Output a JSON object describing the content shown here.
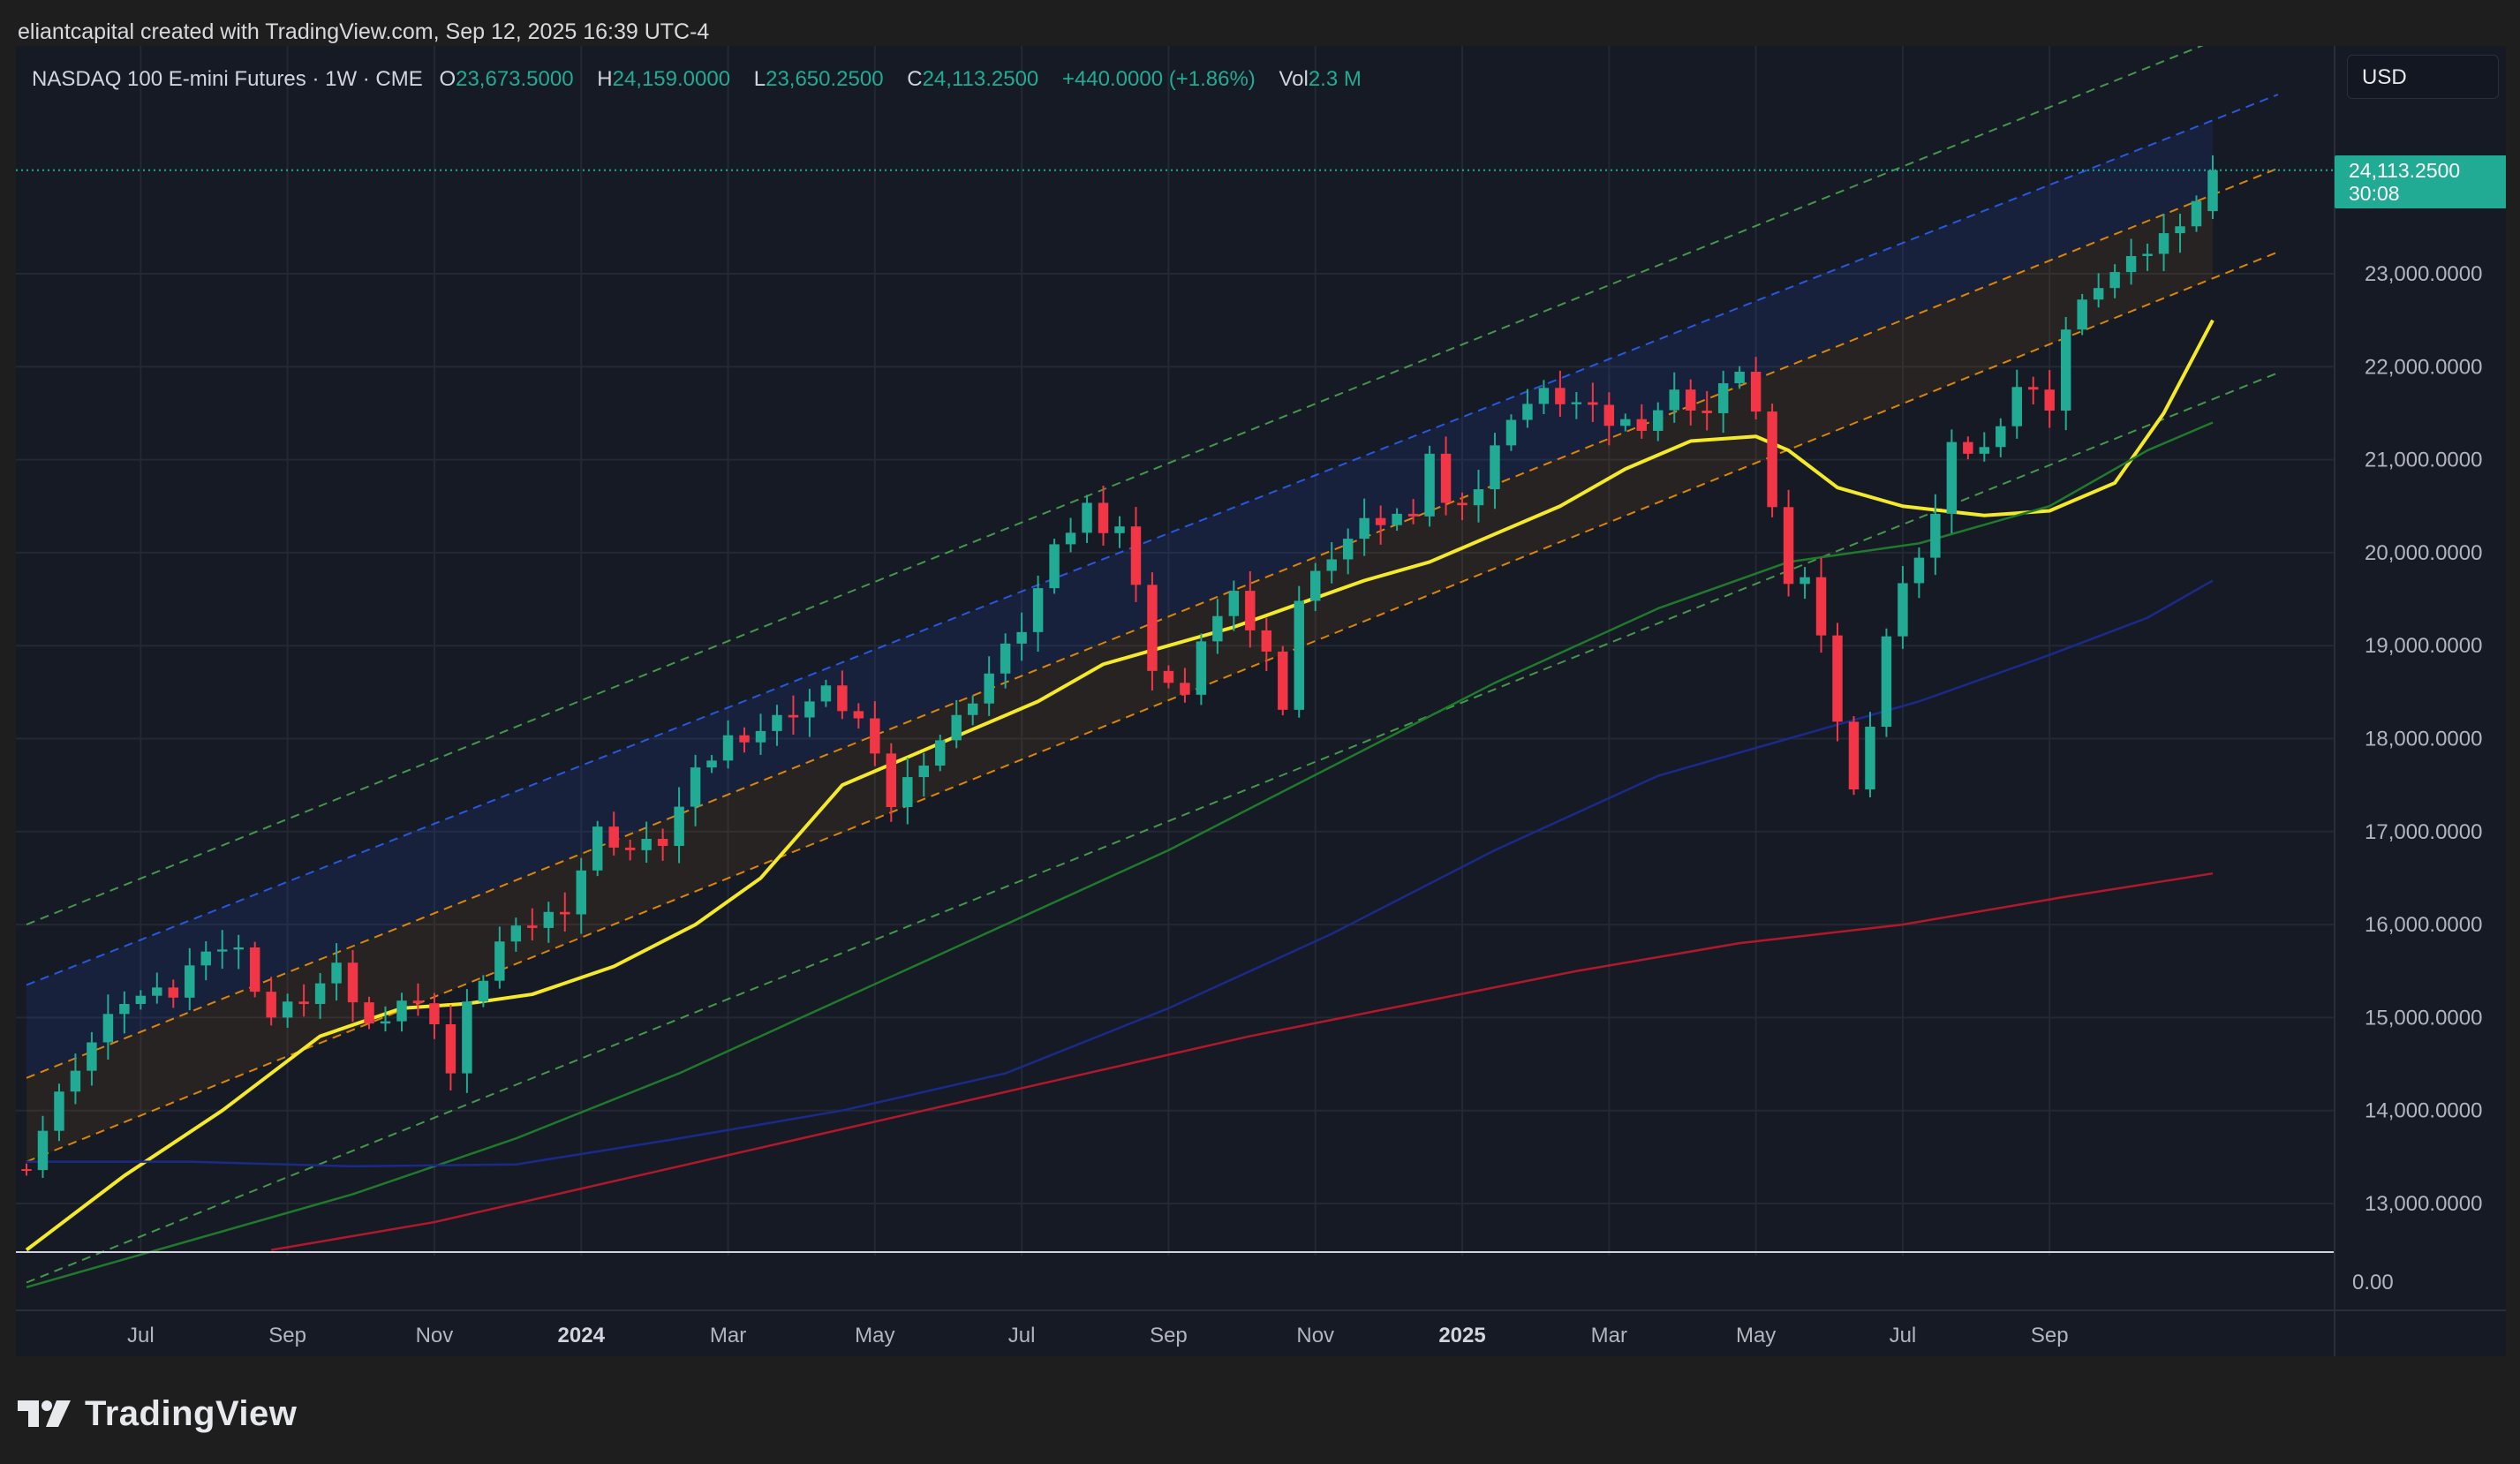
{
  "attribution": "eliantcapital created with TradingView.com, Sep 12, 2025 16:39 UTC-4",
  "legend": {
    "symbol": "NASDAQ 100 E-mini Futures · 1W · CME",
    "open_label": "O",
    "open": "23,673.5000",
    "high_label": "H",
    "high": "24,159.0000",
    "low_label": "L",
    "low": "23,650.2500",
    "close_label": "C",
    "close": "24,113.2500",
    "change": "+440.0000 (+1.86%)",
    "vol_label": "Vol",
    "vol": "2.3 M"
  },
  "currency": "USD",
  "last_price": {
    "price": "24,113.2500",
    "countdown": "30:08"
  },
  "brand": {
    "name": "TradingView",
    "logo_icon": "tradingview-logo-icon"
  },
  "colors": {
    "up": "#22ab94",
    "down": "#f23645",
    "sma_yellow": "#f5ea2a",
    "sma_green": "#1f7a2b",
    "sma_blue": "#1a2a8a",
    "sma_red": "#b2182b",
    "channel_green": "#4caf50",
    "channel_blue": "#2962ff",
    "channel_orange": "#ff9800"
  },
  "chart_data": {
    "type": "candlestick",
    "instrument": "NASDAQ 100 E-mini Futures",
    "interval": "1W",
    "x_ticks": [
      "Jul",
      "Sep",
      "Nov",
      "2024",
      "Mar",
      "May",
      "Jul",
      "Sep",
      "Nov",
      "2025",
      "Mar",
      "May",
      "Jul",
      "Sep"
    ],
    "x_ticks_bold": [
      "2024",
      "2025"
    ],
    "y_ticks": [
      "13,000.0000",
      "14,000.0000",
      "15,000.0000",
      "16,000.0000",
      "17,000.0000",
      "18,000.0000",
      "19,000.0000",
      "20,000.0000",
      "21,000.0000",
      "22,000.0000",
      "23,000.0000"
    ],
    "y_ticks_values": [
      13000,
      14000,
      15000,
      16000,
      17000,
      18000,
      19000,
      20000,
      21000,
      22000,
      23000
    ],
    "volume_pane_label": "0.00",
    "ylim": [
      12500,
      24900
    ],
    "weeks": 134,
    "close_path": [
      [
        0,
        13450
      ],
      [
        3,
        14500
      ],
      [
        6,
        15200
      ],
      [
        9,
        15250
      ],
      [
        11,
        15800
      ],
      [
        13,
        15700
      ],
      [
        15,
        15000
      ],
      [
        17,
        15200
      ],
      [
        19,
        15500
      ],
      [
        21,
        14900
      ],
      [
        23,
        15200
      ],
      [
        25,
        15000
      ],
      [
        26,
        14400
      ],
      [
        27,
        15100
      ],
      [
        29,
        15800
      ],
      [
        31,
        16000
      ],
      [
        33,
        16200
      ],
      [
        35,
        17000
      ],
      [
        37,
        16800
      ],
      [
        39,
        16900
      ],
      [
        41,
        17600
      ],
      [
        43,
        18000
      ],
      [
        45,
        18100
      ],
      [
        47,
        18300
      ],
      [
        49,
        18500
      ],
      [
        51,
        18200
      ],
      [
        53,
        17300
      ],
      [
        55,
        17800
      ],
      [
        57,
        18200
      ],
      [
        59,
        18700
      ],
      [
        61,
        19200
      ],
      [
        63,
        20000
      ],
      [
        65,
        20500
      ],
      [
        66,
        20300
      ],
      [
        67,
        20300
      ],
      [
        68,
        19600
      ],
      [
        69,
        18800
      ],
      [
        71,
        18400
      ],
      [
        72,
        19100
      ],
      [
        74,
        19500
      ],
      [
        76,
        18900
      ],
      [
        77,
        18400
      ],
      [
        78,
        19500
      ],
      [
        80,
        20000
      ],
      [
        82,
        20300
      ],
      [
        84,
        20400
      ],
      [
        85,
        20300
      ],
      [
        86,
        21100
      ],
      [
        87,
        20500
      ],
      [
        89,
        20700
      ],
      [
        91,
        21500
      ],
      [
        93,
        21700
      ],
      [
        95,
        21600
      ],
      [
        97,
        21400
      ],
      [
        99,
        21400
      ],
      [
        101,
        21700
      ],
      [
        103,
        21500
      ],
      [
        105,
        22000
      ],
      [
        106,
        21500
      ],
      [
        107,
        20400
      ],
      [
        108,
        19700
      ],
      [
        109,
        19700
      ],
      [
        110,
        19200
      ],
      [
        111,
        18200
      ],
      [
        112,
        17400
      ],
      [
        113,
        18200
      ],
      [
        114,
        19100
      ],
      [
        115,
        19600
      ],
      [
        116,
        20000
      ],
      [
        117,
        20400
      ],
      [
        118,
        21100
      ],
      [
        120,
        21100
      ],
      [
        122,
        21800
      ],
      [
        124,
        21600
      ],
      [
        125,
        22400
      ],
      [
        127,
        22900
      ],
      [
        129,
        23100
      ],
      [
        131,
        23400
      ],
      [
        133,
        23800
      ],
      [
        134,
        24113
      ]
    ],
    "moving_averages": [
      {
        "color": "#f5ea2a",
        "points": [
          [
            0,
            12500
          ],
          [
            6,
            13300
          ],
          [
            12,
            14000
          ],
          [
            18,
            14800
          ],
          [
            23,
            15100
          ],
          [
            27,
            15150
          ],
          [
            31,
            15250
          ],
          [
            36,
            15550
          ],
          [
            41,
            16000
          ],
          [
            45,
            16500
          ],
          [
            50,
            17500
          ],
          [
            54,
            17800
          ],
          [
            58,
            18100
          ],
          [
            62,
            18400
          ],
          [
            66,
            18800
          ],
          [
            70,
            19000
          ],
          [
            74,
            19200
          ],
          [
            78,
            19450
          ],
          [
            82,
            19700
          ],
          [
            86,
            19900
          ],
          [
            90,
            20200
          ],
          [
            94,
            20500
          ],
          [
            98,
            20900
          ],
          [
            102,
            21200
          ],
          [
            106,
            21250
          ],
          [
            108,
            21100
          ],
          [
            111,
            20700
          ],
          [
            115,
            20500
          ],
          [
            120,
            20400
          ],
          [
            124,
            20450
          ],
          [
            128,
            20750
          ],
          [
            131,
            21500
          ],
          [
            134,
            22500
          ]
        ]
      },
      {
        "color": "#1f7a2b",
        "points": [
          [
            0,
            12100
          ],
          [
            10,
            12600
          ],
          [
            20,
            13100
          ],
          [
            30,
            13700
          ],
          [
            40,
            14400
          ],
          [
            50,
            15200
          ],
          [
            60,
            16000
          ],
          [
            70,
            16800
          ],
          [
            80,
            17700
          ],
          [
            90,
            18600
          ],
          [
            100,
            19400
          ],
          [
            108,
            19900
          ],
          [
            116,
            20100
          ],
          [
            124,
            20500
          ],
          [
            130,
            21100
          ],
          [
            134,
            21400
          ]
        ]
      },
      {
        "color": "#1a2a8a",
        "points": [
          [
            0,
            13450
          ],
          [
            10,
            13450
          ],
          [
            20,
            13400
          ],
          [
            30,
            13420
          ],
          [
            40,
            13700
          ],
          [
            50,
            14000
          ],
          [
            60,
            14400
          ],
          [
            70,
            15100
          ],
          [
            80,
            15900
          ],
          [
            90,
            16800
          ],
          [
            100,
            17600
          ],
          [
            108,
            18000
          ],
          [
            116,
            18400
          ],
          [
            124,
            18900
          ],
          [
            130,
            19300
          ],
          [
            134,
            19700
          ]
        ]
      },
      {
        "color": "#b2182b",
        "points": [
          [
            15,
            12500
          ],
          [
            25,
            12800
          ],
          [
            35,
            13200
          ],
          [
            45,
            13600
          ],
          [
            55,
            14000
          ],
          [
            65,
            14400
          ],
          [
            75,
            14800
          ],
          [
            85,
            15150
          ],
          [
            95,
            15500
          ],
          [
            105,
            15800
          ],
          [
            115,
            16000
          ],
          [
            125,
            16300
          ],
          [
            134,
            16550
          ]
        ]
      }
    ],
    "channels": [
      {
        "color": "#4caf50",
        "start": [
          0,
          16000
        ],
        "end": [
          134,
          25500
        ]
      },
      {
        "color": "#2962ff",
        "start": [
          0,
          15350
        ],
        "end": [
          134,
          24650
        ]
      },
      {
        "color": "#ff9800",
        "start": [
          0,
          14350
        ],
        "end": [
          134,
          23850
        ]
      },
      {
        "color": "#ff9800",
        "start": [
          0,
          13450
        ],
        "end": [
          134,
          22950
        ]
      },
      {
        "color": "#4caf50",
        "start": [
          0,
          12150
        ],
        "end": [
          134,
          21650
        ]
      }
    ],
    "last_close": 24113.25
  }
}
